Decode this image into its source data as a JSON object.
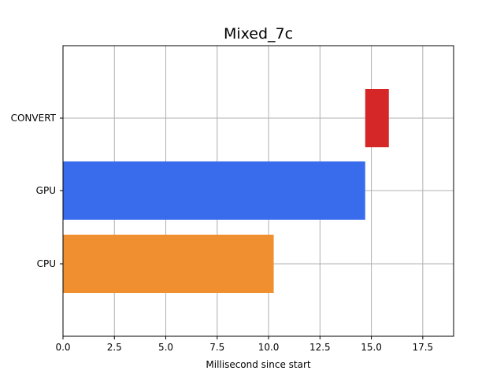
{
  "chart_data": {
    "type": "bar",
    "orientation": "horizontal",
    "title": "Mixed_7c",
    "xlabel": "Millisecond since start",
    "ylabel": "",
    "xlim": [
      0,
      19
    ],
    "xticks": [
      0.0,
      2.5,
      5.0,
      7.5,
      10.0,
      12.5,
      15.0,
      17.5
    ],
    "xtick_labels": [
      "0.0",
      "2.5",
      "5.0",
      "7.5",
      "10.0",
      "12.5",
      "15.0",
      "17.5"
    ],
    "categories": [
      "CPU",
      "GPU",
      "CONVERT"
    ],
    "bars": [
      {
        "category": "CPU",
        "start": 0,
        "end": 10.25,
        "color": "#ef8f2f"
      },
      {
        "category": "GPU",
        "start": 0,
        "end": 14.7,
        "color": "#386cec"
      },
      {
        "category": "CONVERT",
        "start": 14.7,
        "end": 15.85,
        "color": "#d62728"
      }
    ],
    "grid": true
  }
}
